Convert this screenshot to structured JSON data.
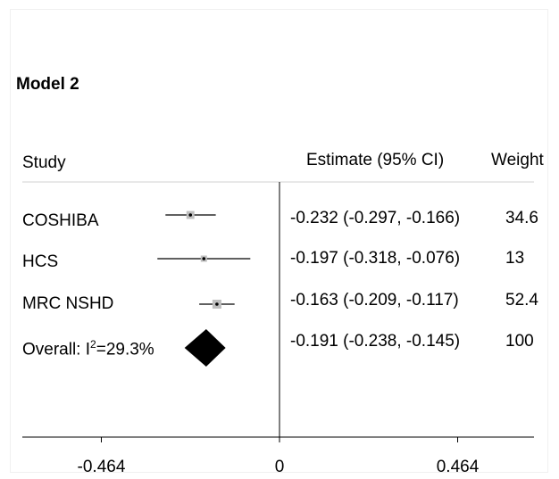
{
  "chart_data": {
    "type": "forest",
    "title": "Model 2",
    "header": {
      "study": "Study",
      "estimate": "Estimate (95% CI)",
      "weight": "Weight"
    },
    "studies": [
      {
        "name": "COSHIBA",
        "estimate": -0.232,
        "lower": -0.297,
        "upper": -0.166,
        "weight": 34.6,
        "estimate_text": "-0.232 (-0.297, -0.166)",
        "weight_text": "34.6"
      },
      {
        "name": "HCS",
        "estimate": -0.197,
        "lower": -0.318,
        "upper": -0.076,
        "weight": 13,
        "estimate_text": "-0.197 (-0.318, -0.076)",
        "weight_text": "13"
      },
      {
        "name": "MRC NSHD",
        "estimate": -0.163,
        "lower": -0.209,
        "upper": -0.117,
        "weight": 52.4,
        "estimate_text": "-0.163 (-0.209, -0.117)",
        "weight_text": "52.4"
      }
    ],
    "overall": {
      "label_prefix": "Overall: I",
      "label_sup": "2",
      "label_suffix": "=29.3%",
      "estimate": -0.191,
      "lower": -0.238,
      "upper": -0.145,
      "weight": 100,
      "estimate_text": "-0.191 (-0.238, -0.145)",
      "weight_text": "100"
    },
    "xlim": [
      -0.464,
      0.464
    ],
    "ticks": [
      {
        "value": -0.464,
        "label": "-0.464"
      },
      {
        "value": 0,
        "label": "0"
      },
      {
        "value": 0.464,
        "label": "0.464"
      }
    ],
    "colors": {
      "study_box": "#bfbfbf",
      "line": "#000000",
      "diamond": "#000000"
    }
  }
}
